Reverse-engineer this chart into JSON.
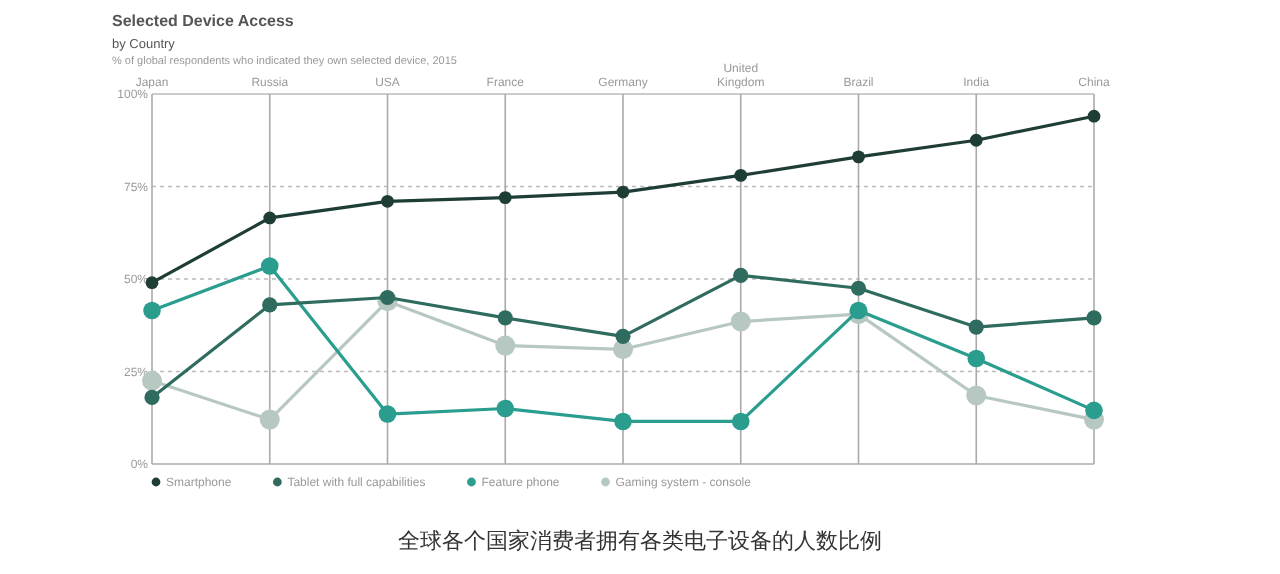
{
  "chart_data": {
    "type": "line",
    "title": "Selected Device Access",
    "subtitle": "by Country",
    "annotations": [
      "% of global respondents who indicated they own selected device, 2015",
      "全球各个国家消费者拥有各类电子设备的人数比例"
    ],
    "categories": [
      "Japan",
      "Russia",
      "USA",
      "France",
      "Germany",
      "United Kingdom",
      "Brazil",
      "India",
      "China"
    ],
    "ylim": [
      0,
      100
    ],
    "yticks": [
      {
        "value": 0,
        "label": "0%"
      },
      {
        "value": 25,
        "label": "25%"
      },
      {
        "value": 50,
        "label": "50%"
      },
      {
        "value": 75,
        "label": "75%"
      },
      {
        "value": 100,
        "label": "100%"
      }
    ],
    "grid": true,
    "legend": "bottom",
    "marker": "circle",
    "line_style": "solid",
    "series": [
      {
        "name": "Smartphone",
        "color": "#1e3d36",
        "values": [
          49,
          66.5,
          71,
          72,
          73.5,
          78,
          83,
          87.5,
          94
        ]
      },
      {
        "name": "Tablet with full capabilities",
        "color": "#2f6b5f",
        "values": [
          18,
          43,
          45,
          39.5,
          34.5,
          51,
          47.5,
          37,
          39.5
        ]
      },
      {
        "name": "Feature phone",
        "color": "#2a9d8f",
        "values": [
          41.5,
          53.5,
          13.5,
          15,
          11.5,
          11.5,
          41.5,
          28.5,
          14.5
        ]
      },
      {
        "name": "Gaming system - console",
        "color": "#b7c7c2",
        "values": [
          22.5,
          12,
          44,
          32,
          31,
          38.5,
          40.5,
          18.5,
          12
        ]
      }
    ]
  }
}
